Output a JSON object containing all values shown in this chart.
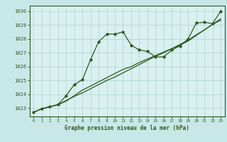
{
  "title": "Graphe pression niveau de la mer (hPa)",
  "bg_color": "#c8e8e8",
  "plot_bg_color": "#d8f0f0",
  "grid_color": "#b0d0d0",
  "line_color": "#2d5a1e",
  "xlim": [
    -0.5,
    23.5
  ],
  "ylim": [
    1022.4,
    1030.4
  ],
  "yticks": [
    1023,
    1024,
    1025,
    1026,
    1027,
    1028,
    1029,
    1030
  ],
  "xticks": [
    0,
    1,
    2,
    3,
    4,
    5,
    6,
    7,
    8,
    9,
    10,
    11,
    12,
    13,
    14,
    15,
    16,
    17,
    18,
    19,
    20,
    21,
    22,
    23
  ],
  "series_main": [
    1022.7,
    1022.95,
    1023.1,
    1023.25,
    1023.9,
    1024.7,
    1025.05,
    1026.5,
    1027.8,
    1028.35,
    1028.35,
    1028.5,
    1027.55,
    1027.2,
    1027.1,
    1026.7,
    1026.7,
    1027.2,
    1027.5,
    1028.0,
    1029.15,
    1029.2,
    1029.1,
    1030.0
  ],
  "series_trend1": [
    1022.7,
    1022.95,
    1023.1,
    1023.25,
    1023.5,
    1023.9,
    1024.3,
    1024.6,
    1024.9,
    1025.2,
    1025.5,
    1025.8,
    1026.0,
    1026.3,
    1026.55,
    1026.8,
    1027.05,
    1027.3,
    1027.55,
    1027.85,
    1028.25,
    1028.65,
    1029.05,
    1029.45
  ],
  "series_trend2": [
    1022.7,
    1022.95,
    1023.1,
    1023.25,
    1023.55,
    1023.85,
    1024.1,
    1024.4,
    1024.7,
    1025.0,
    1025.25,
    1025.55,
    1025.85,
    1026.15,
    1026.45,
    1026.75,
    1027.0,
    1027.3,
    1027.6,
    1027.9,
    1028.3,
    1028.65,
    1029.05,
    1029.35
  ]
}
